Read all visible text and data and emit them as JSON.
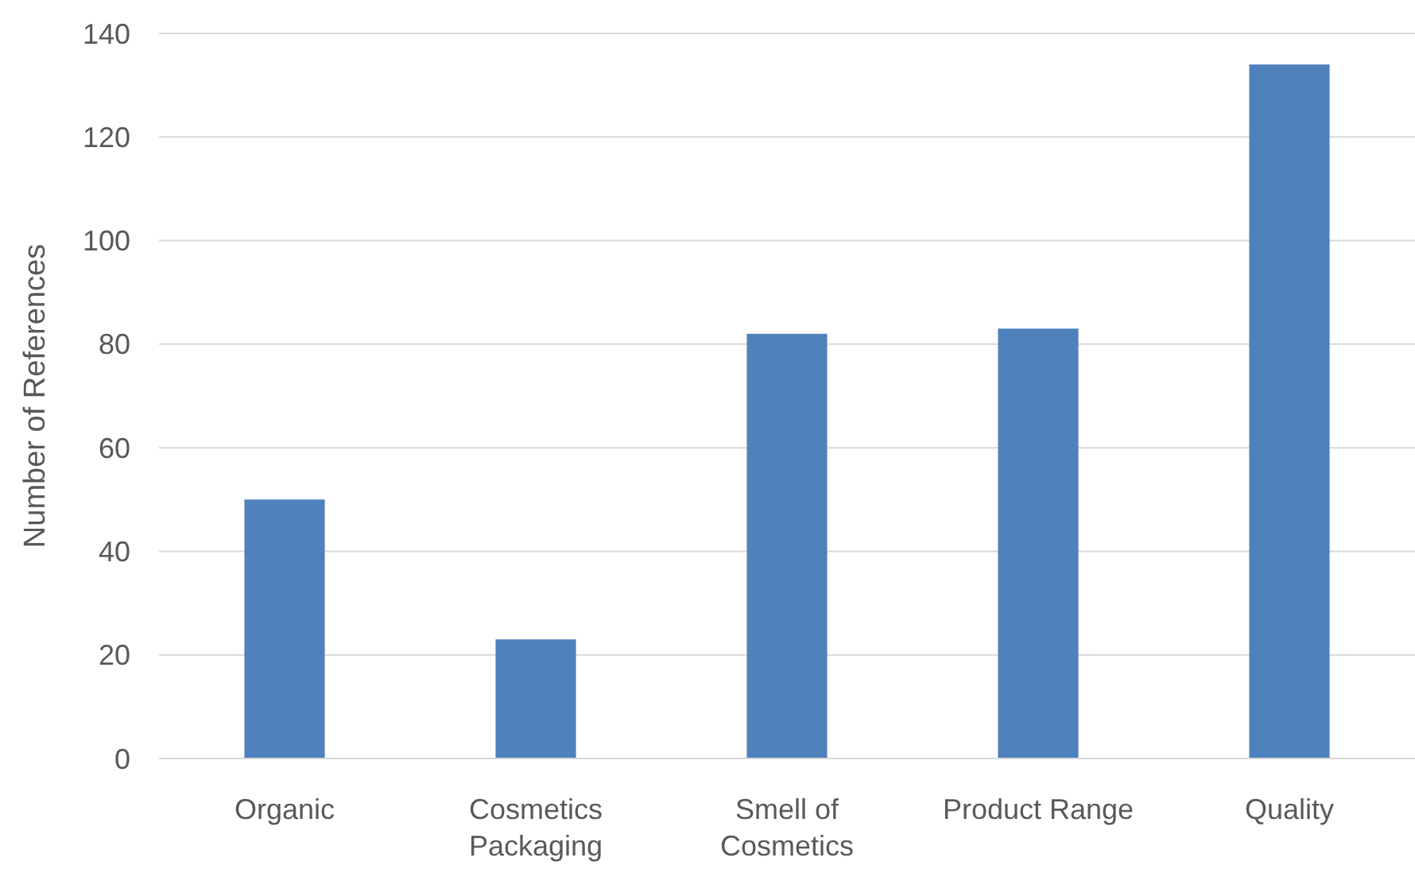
{
  "chart_data": {
    "type": "bar",
    "ylabel": "Number of References",
    "categories": [
      "Organic",
      "Cosmetics Packaging",
      "Smell of Cosmetics",
      "Product Range",
      "Quality"
    ],
    "values": [
      50,
      23,
      82,
      83,
      134
    ],
    "color": "#4f81bd",
    "ylim": [
      0,
      140
    ],
    "yticks": [
      0,
      20,
      40,
      60,
      80,
      100,
      120,
      140
    ],
    "grid": "y"
  }
}
